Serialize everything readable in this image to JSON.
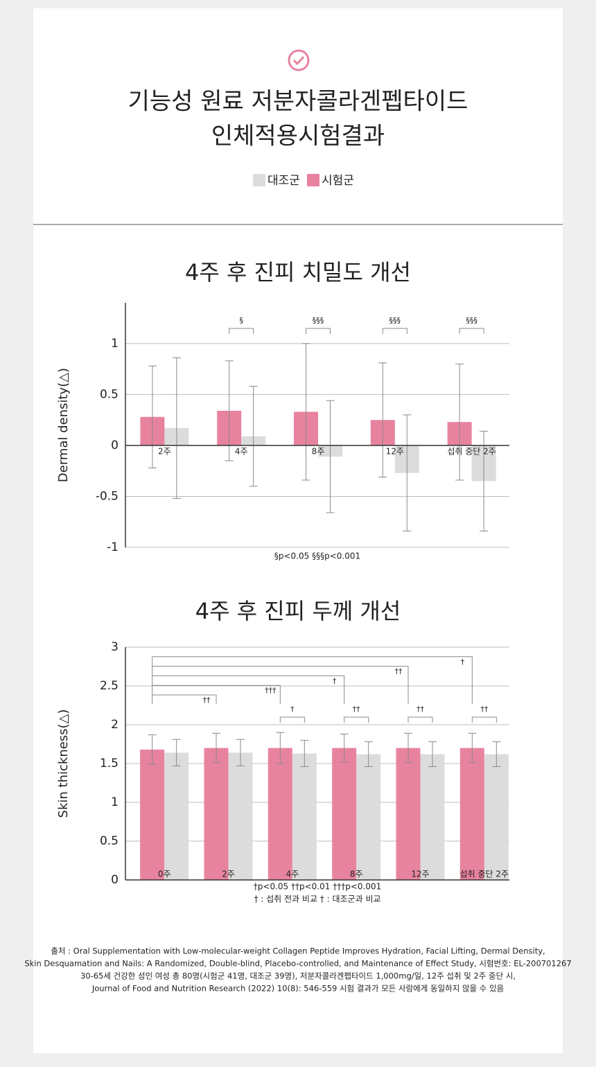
{
  "header": {
    "title_lines": [
      "기능성 원료 저분자콜라겐펩타이드",
      "인체적용시험결과"
    ]
  },
  "chart_data": [
    {
      "type": "bar",
      "title": "4주 후 진피 치밀도 개선",
      "ylabel": "Dermal density(△)",
      "categories": [
        "2주",
        "4주",
        "8주",
        "12주",
        "섭취 중단 2주"
      ],
      "series": [
        {
          "name": "시험군",
          "color": "#e8839f",
          "values": [
            0.28,
            0.34,
            0.33,
            0.25,
            0.23
          ],
          "errors": [
            0.5,
            0.49,
            0.67,
            0.56,
            0.57
          ]
        },
        {
          "name": "대조군",
          "color": "#dcdcdc",
          "values": [
            0.17,
            0.09,
            -0.11,
            -0.27,
            -0.35
          ],
          "errors": [
            0.69,
            0.49,
            0.55,
            0.57,
            0.49
          ]
        }
      ],
      "ylim": [
        -1,
        1.4
      ],
      "yticks": [
        -1,
        -0.5,
        0,
        0.5,
        1
      ],
      "grid": true,
      "vs_control": [
        null,
        "§",
        "§§§",
        "§§§",
        "§§§"
      ],
      "footnotes": [
        "§p<0.05  §§§p<0.001"
      ]
    },
    {
      "type": "bar",
      "title": "4주 후 진피 두께 개선",
      "ylabel": "Skin thickness(△)",
      "categories": [
        "0주",
        "2주",
        "4주",
        "8주",
        "12주",
        "섭취 중단 2주"
      ],
      "series": [
        {
          "name": "시험군",
          "color": "#e8839f",
          "values": [
            1.68,
            1.7,
            1.7,
            1.7,
            1.7,
            1.7
          ],
          "errors": [
            0.19,
            0.19,
            0.2,
            0.18,
            0.19,
            0.19
          ]
        },
        {
          "name": "대조군",
          "color": "#dcdcdc",
          "values": [
            1.64,
            1.64,
            1.63,
            1.62,
            1.62,
            1.62
          ],
          "errors": [
            0.17,
            0.17,
            0.17,
            0.16,
            0.16,
            0.16
          ]
        }
      ],
      "ylim": [
        0,
        3
      ],
      "yticks": [
        0,
        0.5,
        1,
        1.5,
        2,
        2.5,
        3
      ],
      "grid": true,
      "vs_control": [
        null,
        null,
        "†",
        "††",
        "††",
        "††"
      ],
      "vs_baseline": [
        null,
        "††",
        "†††",
        "†",
        "††",
        "†"
      ],
      "footnotes": [
        "†p<0.05  ††p<0.01  †††p<0.001",
        "† : 섭취 전과 비교   † : 대조군과 비교"
      ]
    }
  ],
  "source": [
    "출처 : Oral Supplementation with Low-molecular-weight Collagen Peptide Improves Hydration, Facial Lifting, Dermal Density,",
    "Skin Desquamation and Nails: A Randomized, Double-blind, Placebo-controlled, and Maintenance of Effect Study, 시험번호: EL-200701267",
    "30-65세 건강한 성인 여성 총 80명(시험군 41명, 대조군 39명), 저분자콜라겐펩타이드 1,000mg/일, 12주 섭취 및 2주 중단 시,",
    "Journal of Food and Nutrition Research (2022) 10(8): 546-559 시험 결과가 모든 사람에게 동일하지 않을 수 있음"
  ]
}
